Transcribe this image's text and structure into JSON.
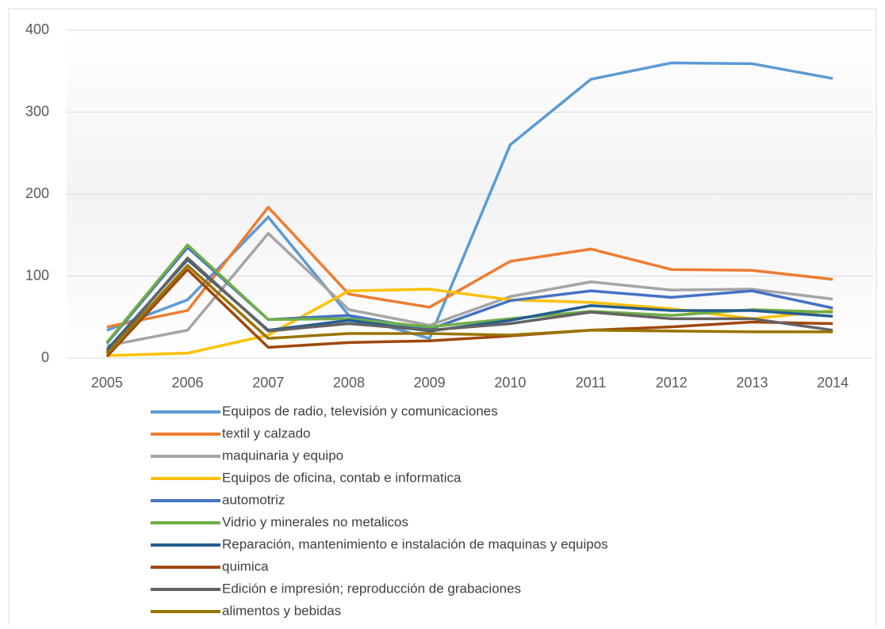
{
  "chart_data": {
    "type": "line",
    "categories": [
      "2005",
      "2006",
      "2007",
      "2008",
      "2009",
      "2010",
      "2011",
      "2012",
      "2013",
      "2014"
    ],
    "series": [
      {
        "name": "Equipos de radio, televisión y comunicaciones",
        "color": "#5b9bd5",
        "values": [
          34,
          71,
          172,
          52,
          24,
          260,
          340,
          360,
          359,
          341
        ]
      },
      {
        "name": "textil y calzado",
        "color": "#ed7d31",
        "values": [
          38,
          58,
          184,
          78,
          62,
          118,
          133,
          108,
          107,
          96
        ]
      },
      {
        "name": "maquinaria y equipo",
        "color": "#a5a5a5",
        "values": [
          15,
          34,
          152,
          59,
          40,
          75,
          93,
          83,
          84,
          72
        ]
      },
      {
        "name": "Equipos de oficina, contab e informatica",
        "color": "#ffc000",
        "values": [
          3,
          6,
          28,
          82,
          84,
          71,
          68,
          60,
          48,
          58
        ]
      },
      {
        "name": "automotriz",
        "color": "#4472c4",
        "values": [
          18,
          135,
          47,
          52,
          35,
          70,
          82,
          74,
          82,
          61
        ]
      },
      {
        "name": "Vidrio y minerales no metalicos",
        "color": "#70ad47",
        "values": [
          19,
          138,
          47,
          48,
          38,
          48,
          57,
          52,
          59,
          56
        ]
      },
      {
        "name": "Reparación, mantenimiento e instalación de maquinas y equipos",
        "color": "#255e91",
        "values": [
          10,
          120,
          34,
          46,
          33,
          46,
          64,
          58,
          58,
          51
        ]
      },
      {
        "name": "quimica",
        "color": "#9e480e",
        "values": [
          2,
          108,
          13,
          19,
          21,
          27,
          34,
          38,
          44,
          42
        ]
      },
      {
        "name": "Edición e impresión; reproducción de grabaciones",
        "color": "#636363",
        "values": [
          7,
          122,
          33,
          42,
          34,
          42,
          56,
          48,
          48,
          34
        ]
      },
      {
        "name": "alimentos y bebidas",
        "color": "#997300",
        "values": [
          5,
          113,
          24,
          30,
          30,
          28,
          34,
          33,
          32,
          32
        ]
      }
    ],
    "ylim": [
      0,
      400
    ],
    "yticks": [
      0,
      100,
      200,
      300,
      400
    ],
    "grid": true,
    "legend": "bottom"
  }
}
